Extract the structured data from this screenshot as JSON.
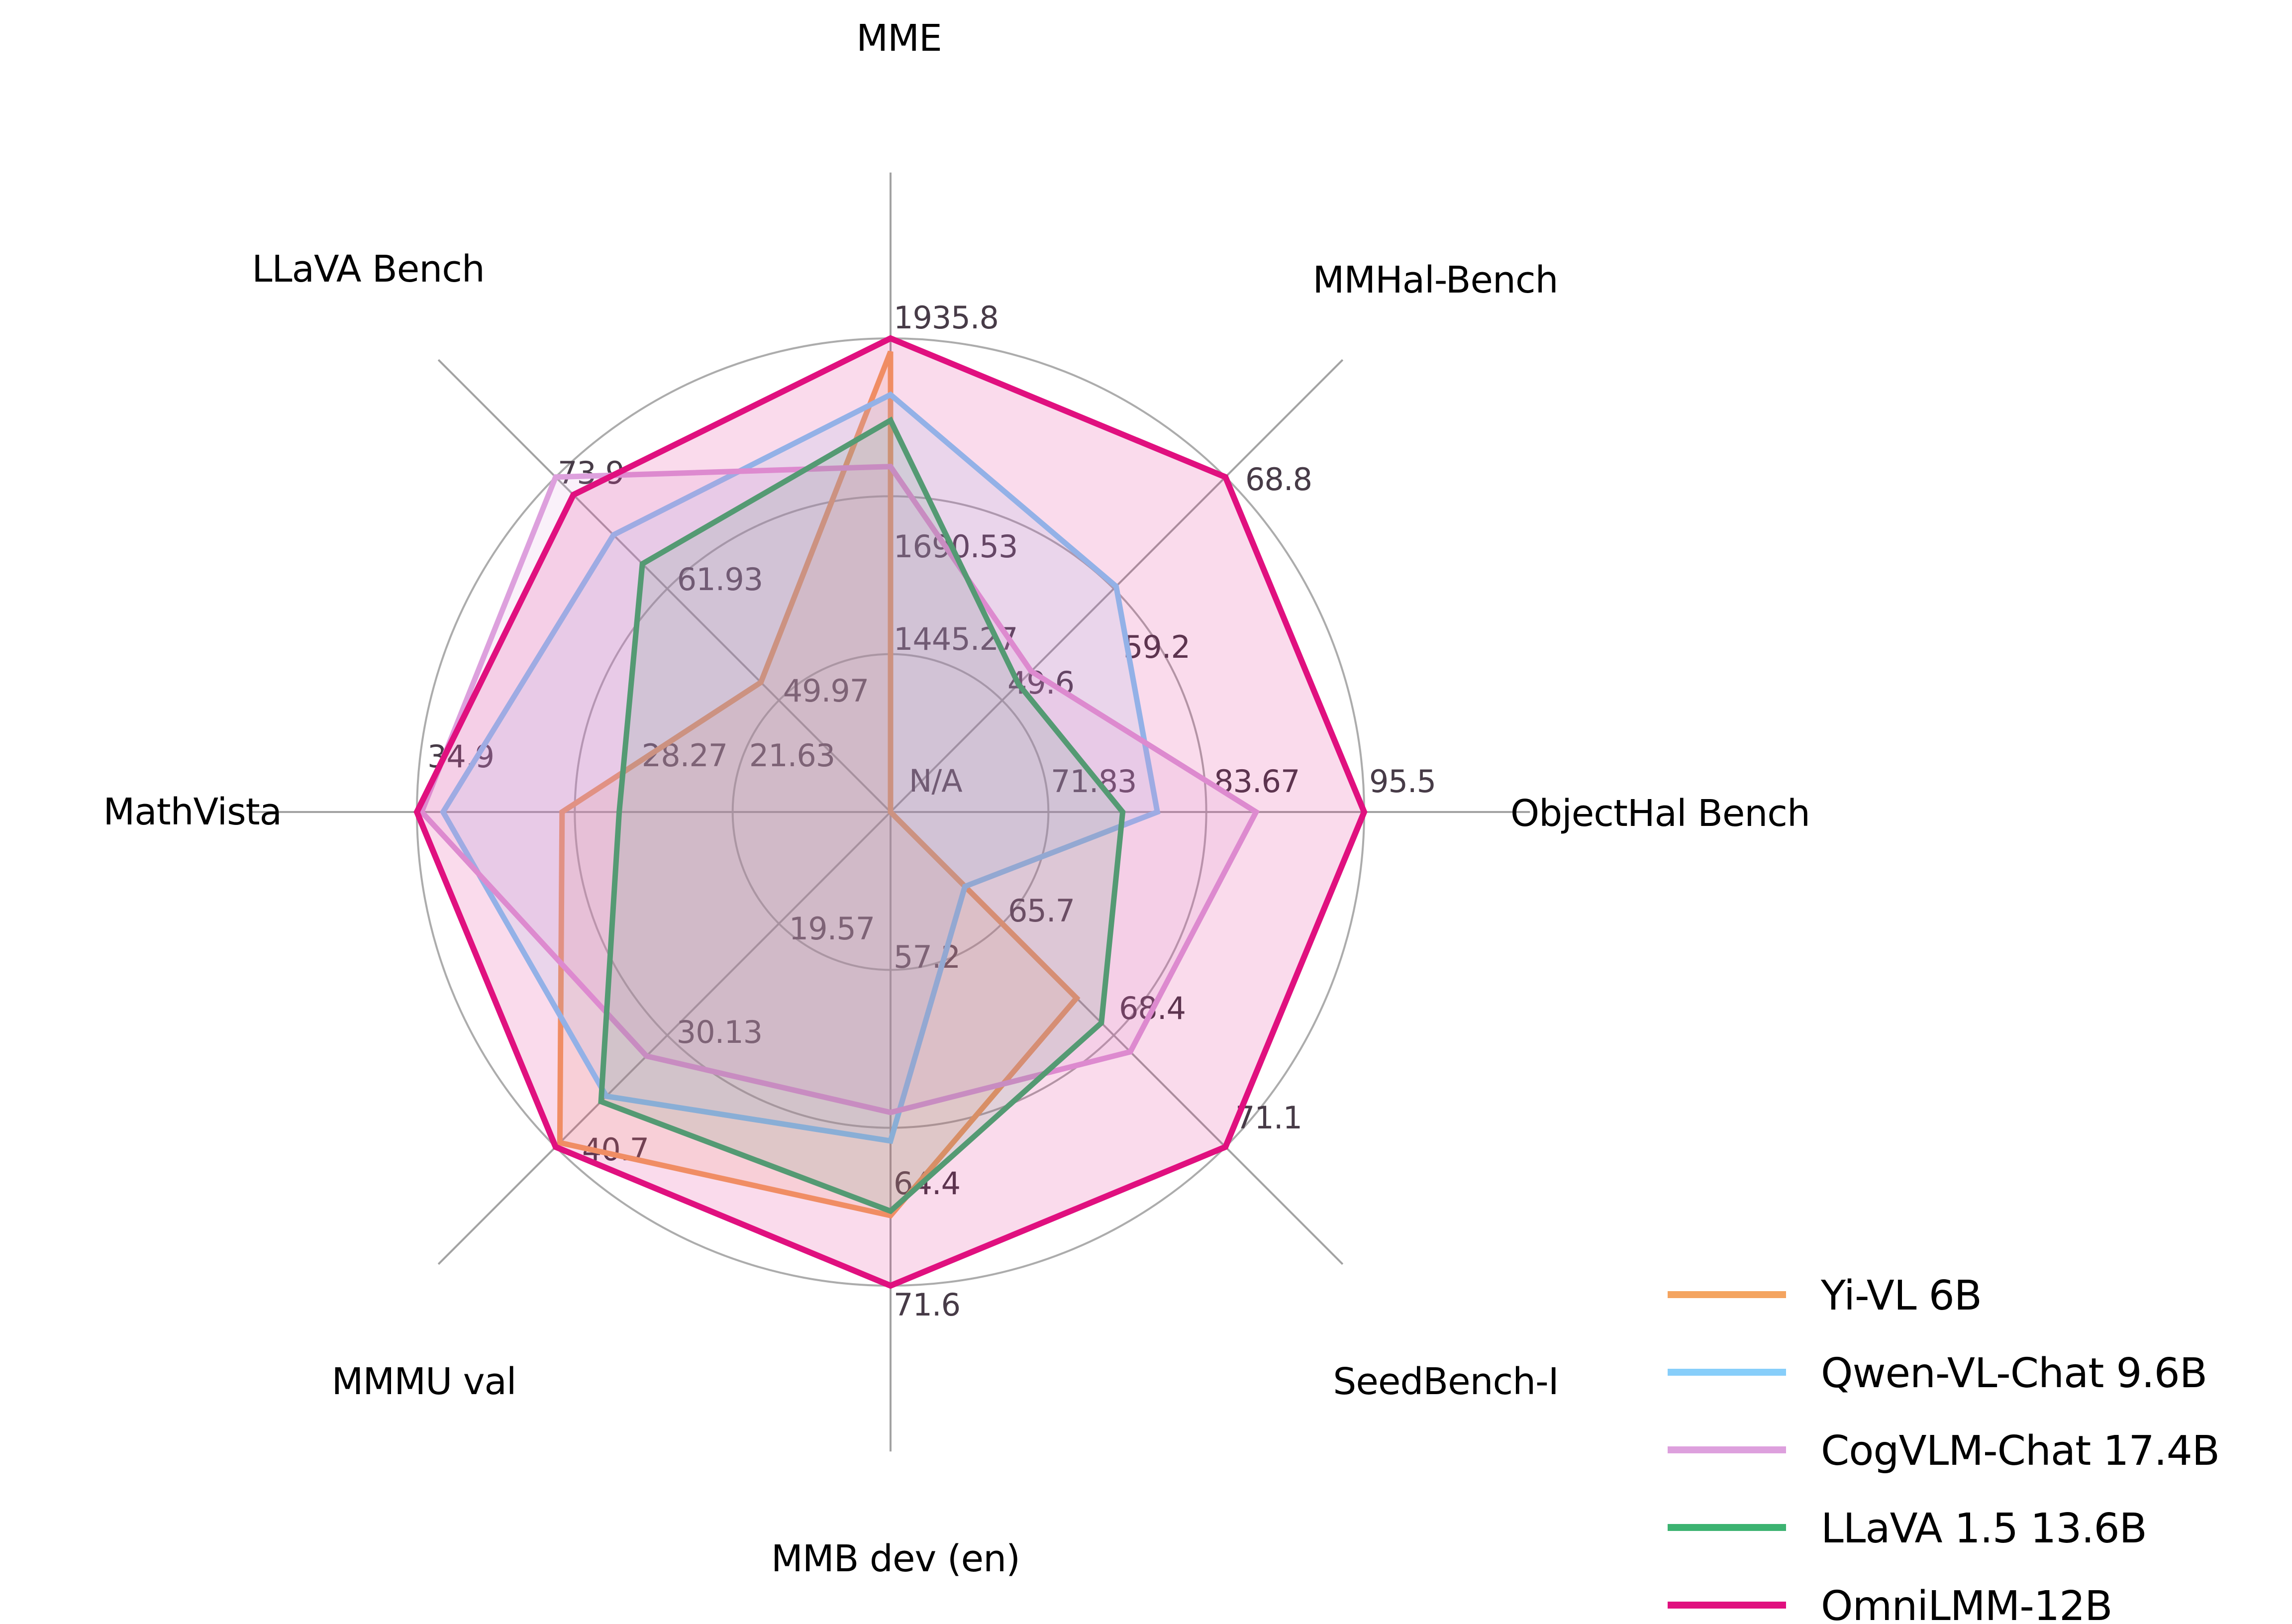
{
  "figure": {
    "background_color": "#ffffff",
    "grid_color": "#ACACAC",
    "spoke_color": "#A3A3A3",
    "tick_text_color": "#473B47",
    "axis_title_color": "#000000",
    "legend_text_color": "#000000"
  },
  "chart_data": {
    "type": "radar",
    "title": "",
    "grid": true,
    "rings": 3,
    "legend_position": "lower right",
    "scale_note": "Each axis has its own scale; tick labels mark 1/3, 2/3 and max radius. N/A values are drawn at the center.",
    "missing_value_text": "N/A",
    "axes": [
      {
        "label": "MME",
        "center_value": 1200,
        "max": 1935.8,
        "ticks": [
          "1445.27",
          "1690.53",
          "1935.8"
        ],
        "center_tick": "N/A"
      },
      {
        "label": "MMHal-Bench",
        "center_value": 40,
        "max": 68.8,
        "ticks": [
          "49.6",
          "59.2",
          "68.8"
        ]
      },
      {
        "label": "ObjectHal Bench",
        "center_value": 60,
        "max": 95.5,
        "ticks": [
          "71.83",
          "83.67",
          "95.5"
        ]
      },
      {
        "label": "SeedBench-I",
        "center_value": 63,
        "max": 71.1,
        "ticks": [
          "65.7",
          "68.4",
          "71.1"
        ]
      },
      {
        "label": "MMB dev (en)",
        "center_value": 50,
        "max": 71.6,
        "ticks": [
          "57.2",
          "64.4",
          "71.6"
        ]
      },
      {
        "label": "MMMU val",
        "center_value": 9,
        "max": 40.7,
        "ticks": [
          "19.57",
          "30.13",
          "40.7"
        ]
      },
      {
        "label": "MathVista",
        "center_value": 15,
        "max": 34.9,
        "ticks": [
          "21.63",
          "28.27",
          "34.9"
        ]
      },
      {
        "label": "LLaVA Bench",
        "center_value": 38,
        "max": 73.9,
        "ticks": [
          "49.97",
          "61.93",
          "73.9"
        ]
      }
    ],
    "series": [
      {
        "name": "Yi-VL 6B",
        "color": "#F4A460",
        "values": [
          1915.1,
          null,
          null,
          67.5,
          68.4,
          40.3,
          28.8,
          51.9
        ]
      },
      {
        "name": "Qwen-VL-Chat 9.6B",
        "color": "#87CEFA",
        "values": [
          1848.3,
          59.4,
          80.0,
          64.8,
          65.0,
          35.9,
          33.8,
          67.7
        ]
      },
      {
        "name": "CogVLM-Chat 17.4B",
        "color": "#DDA0DD",
        "values": [
          1736.6,
          52.1,
          87.4,
          68.8,
          63.7,
          32.1,
          34.7,
          73.9
        ]
      },
      {
        "name": "LLaVA 1.5 13.6B",
        "color": "#3CB371",
        "values": [
          1808.4,
          51.0,
          77.4,
          68.1,
          68.2,
          36.4,
          26.4,
          64.6
        ]
      },
      {
        "name": "OmniLMM-12B",
        "color": "#E0107F",
        "values": [
          1935.8,
          68.8,
          95.5,
          71.1,
          71.6,
          40.7,
          34.9,
          72.0
        ]
      }
    ]
  }
}
